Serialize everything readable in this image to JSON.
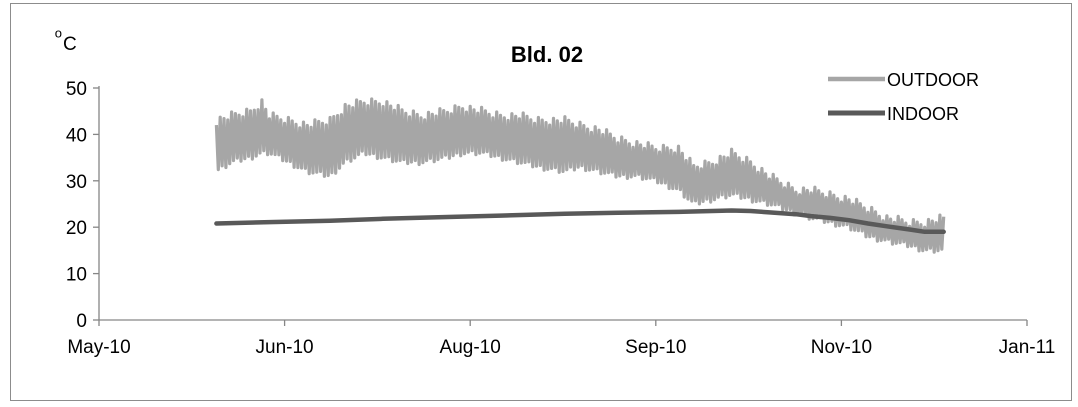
{
  "chart_data": {
    "type": "line",
    "title": "Bld. 02",
    "ylabel": "oC",
    "ylabel_main": "o",
    "ylabel_sup": "C",
    "xlabel": "",
    "ylim": [
      0,
      50
    ],
    "yticks": [
      0,
      10,
      20,
      30,
      40,
      50
    ],
    "xticks": [
      "May-10",
      "Jun-10",
      "Aug-10",
      "Sep-10",
      "Nov-10",
      "Jan-11"
    ],
    "xlim": [
      "2010-05-01",
      "2011-01-01"
    ],
    "grid": false,
    "legend_position": "top-right",
    "series": [
      {
        "name": "OUTDOOR",
        "color": "#a6a6a6",
        "style": "daily-range-band",
        "x": [
          "2010-06-01",
          "2010-06-05",
          "2010-06-10",
          "2010-06-13",
          "2010-06-15",
          "2010-06-20",
          "2010-06-25",
          "2010-07-01",
          "2010-07-05",
          "2010-07-10",
          "2010-07-15",
          "2010-07-20",
          "2010-07-25",
          "2010-08-01",
          "2010-08-05",
          "2010-08-10",
          "2010-08-15",
          "2010-08-20",
          "2010-08-25",
          "2010-09-01",
          "2010-09-05",
          "2010-09-10",
          "2010-09-15",
          "2010-09-20",
          "2010-09-25",
          "2010-10-01",
          "2010-10-05",
          "2010-10-10",
          "2010-10-15",
          "2010-10-20",
          "2010-10-25",
          "2010-11-01",
          "2010-11-05",
          "2010-11-10",
          "2010-11-15",
          "2010-11-20",
          "2010-11-25",
          "2010-12-01",
          "2010-12-05",
          "2010-12-10"
        ],
        "low": [
          32,
          34,
          35,
          36,
          36,
          34,
          32,
          31,
          34,
          36,
          35,
          34,
          34,
          35,
          36,
          36,
          35,
          34,
          33,
          32,
          33,
          32,
          31,
          31,
          30,
          28,
          25,
          26,
          27,
          26,
          25,
          23,
          22,
          21,
          20,
          18,
          17,
          16,
          15,
          15
        ],
        "high": [
          43,
          44,
          45,
          47,
          44,
          43,
          42,
          43,
          46,
          47,
          47,
          45,
          44,
          45,
          46,
          45,
          44,
          44,
          43,
          43,
          42,
          41,
          39,
          38,
          37,
          37,
          33,
          34,
          36,
          34,
          31,
          28,
          28,
          27,
          26,
          24,
          22,
          21,
          21,
          22
        ]
      },
      {
        "name": "INDOOR",
        "color": "#595959",
        "style": "line",
        "x": [
          "2010-06-01",
          "2010-06-15",
          "2010-07-01",
          "2010-07-15",
          "2010-08-01",
          "2010-08-15",
          "2010-09-01",
          "2010-09-15",
          "2010-10-01",
          "2010-10-15",
          "2010-10-20",
          "2010-10-25",
          "2010-11-01",
          "2010-11-05",
          "2010-11-10",
          "2010-11-15",
          "2010-11-20",
          "2010-11-25",
          "2010-12-01",
          "2010-12-05",
          "2010-12-10"
        ],
        "values": [
          20.8,
          21.1,
          21.4,
          21.8,
          22.2,
          22.5,
          22.9,
          23.1,
          23.3,
          23.6,
          23.5,
          23.2,
          22.8,
          22.4,
          22.0,
          21.5,
          20.8,
          20.2,
          19.5,
          19.0,
          19.0
        ]
      }
    ]
  }
}
